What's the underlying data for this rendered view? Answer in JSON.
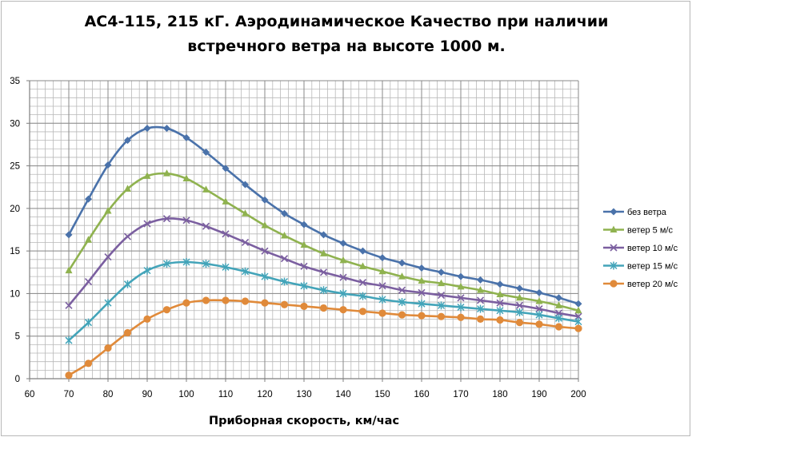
{
  "chart_data": {
    "type": "line",
    "title_lines": [
      "АС4-115, 215 кГ. Аэродинамическое Качество при наличии",
      "встречного ветра на высоте 1000 м."
    ],
    "xlabel": "Приборная скорость, км/час",
    "ylabel": "",
    "xlim": [
      60,
      200
    ],
    "ylim": [
      0,
      35
    ],
    "x_ticks": [
      60,
      70,
      80,
      90,
      100,
      110,
      120,
      130,
      140,
      150,
      160,
      170,
      180,
      190,
      200
    ],
    "y_ticks": [
      0,
      5,
      10,
      15,
      20,
      25,
      30,
      35
    ],
    "x_minor_step": 2,
    "y_minor_step": 1,
    "grid": true,
    "legend_position": "right",
    "x": [
      70,
      75,
      80,
      85,
      90,
      95,
      100,
      105,
      110,
      115,
      120,
      125,
      130,
      135,
      140,
      145,
      150,
      155,
      160,
      165,
      170,
      175,
      180,
      185,
      190,
      195,
      200
    ],
    "series": [
      {
        "name": "без ветра",
        "color": "#4a72aa",
        "marker": "diamond",
        "values": [
          16.9,
          21.1,
          25.1,
          28.0,
          29.4,
          29.4,
          28.3,
          26.6,
          24.7,
          22.8,
          21.0,
          19.4,
          18.1,
          16.9,
          15.9,
          15.0,
          14.2,
          13.6,
          13.0,
          12.5,
          12.0,
          11.6,
          11.1,
          10.6,
          10.1,
          9.5,
          8.8
        ]
      },
      {
        "name": "ветер 5 м/с",
        "color": "#8fb24f",
        "marker": "triangle",
        "values": [
          12.7,
          16.3,
          19.7,
          22.3,
          23.8,
          24.1,
          23.5,
          22.2,
          20.8,
          19.4,
          18.0,
          16.8,
          15.7,
          14.7,
          13.9,
          13.2,
          12.6,
          12.0,
          11.5,
          11.2,
          10.8,
          10.4,
          9.9,
          9.5,
          9.1,
          8.6,
          8.0
        ]
      },
      {
        "name": "ветер 10 м/с",
        "color": "#7b5fa0",
        "marker": "x",
        "values": [
          8.6,
          11.4,
          14.3,
          16.7,
          18.2,
          18.8,
          18.6,
          17.9,
          17.0,
          16.0,
          15.0,
          14.1,
          13.2,
          12.5,
          11.9,
          11.3,
          10.9,
          10.4,
          10.1,
          9.8,
          9.5,
          9.2,
          8.9,
          8.6,
          8.2,
          7.7,
          7.3
        ]
      },
      {
        "name": "ветер 15 м/с",
        "color": "#43a4b9",
        "marker": "asterisk",
        "values": [
          4.5,
          6.6,
          8.9,
          11.1,
          12.7,
          13.5,
          13.7,
          13.5,
          13.1,
          12.6,
          12.0,
          11.4,
          10.9,
          10.4,
          10.0,
          9.7,
          9.3,
          9.0,
          8.8,
          8.6,
          8.4,
          8.2,
          8.0,
          7.8,
          7.5,
          7.1,
          6.7
        ]
      },
      {
        "name": "ветер 20 м/с",
        "color": "#e08a3a",
        "marker": "circle",
        "values": [
          0.4,
          1.8,
          3.6,
          5.4,
          7.0,
          8.1,
          8.9,
          9.2,
          9.2,
          9.1,
          8.9,
          8.7,
          8.5,
          8.3,
          8.1,
          7.9,
          7.7,
          7.5,
          7.4,
          7.3,
          7.2,
          7.0,
          6.9,
          6.6,
          6.4,
          6.1,
          5.9
        ]
      }
    ]
  }
}
